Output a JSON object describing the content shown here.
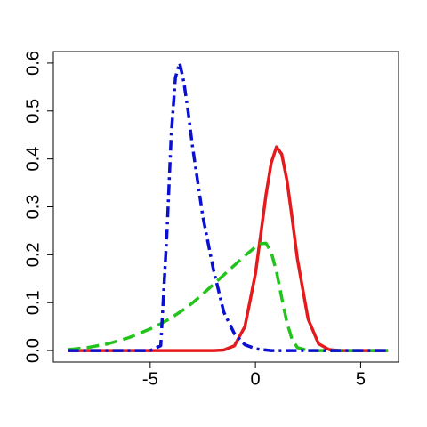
{
  "chart_data": {
    "type": "line",
    "x": [
      -8.9,
      -8,
      -7,
      -6,
      -5,
      -4.5,
      -4.2,
      -4,
      -3.8,
      -3.6,
      -3.4,
      -3.2,
      -3,
      -2.5,
      -2,
      -1.5,
      -1,
      -0.5,
      0,
      0.25,
      0.5,
      0.75,
      1,
      1.25,
      1.5,
      1.75,
      2,
      2.5,
      3,
      3.5,
      4,
      5,
      6.3
    ],
    "series": [
      {
        "color": "#e41a1c",
        "dash": "solid",
        "values": [
          0,
          0,
          0,
          0,
          0,
          0,
          0,
          0,
          0,
          0,
          0,
          0,
          0,
          0,
          0,
          0.001,
          0.01,
          0.05,
          0.16,
          0.241,
          0.325,
          0.392,
          0.425,
          0.41,
          0.355,
          0.275,
          0.19,
          0.066,
          0.014,
          0.002,
          0,
          0,
          0
        ]
      },
      {
        "color": "#22c41c",
        "dash": "dashed",
        "values": [
          0.002,
          0.006,
          0.014,
          0.027,
          0.045,
          0.056,
          0.063,
          0.068,
          0.074,
          0.08,
          0.086,
          0.092,
          0.099,
          0.118,
          0.138,
          0.158,
          0.178,
          0.198,
          0.216,
          0.223,
          0.224,
          0.205,
          0.165,
          0.11,
          0.058,
          0.022,
          0.006,
          0,
          0,
          0,
          0,
          0,
          0
        ]
      },
      {
        "color": "#0a10d0",
        "dash": "dotdash",
        "values": [
          0,
          0,
          0,
          0,
          0,
          0.01,
          0.25,
          0.45,
          0.57,
          0.6,
          0.56,
          0.5,
          0.43,
          0.28,
          0.17,
          0.08,
          0.035,
          0.012,
          0.004,
          0.002,
          0.001,
          0,
          0,
          0,
          0,
          0,
          0,
          0,
          0,
          0,
          0,
          0,
          0
        ]
      }
    ],
    "xlim": [
      -9.6,
      6.8
    ],
    "xticks": [
      -5,
      0,
      5
    ],
    "ylim": [
      -0.024,
      0.624
    ],
    "yticks": [
      {
        "value": 0,
        "label": "0.0"
      },
      0.1,
      0.2,
      0.3,
      0.4,
      0.5,
      0.6
    ]
  }
}
